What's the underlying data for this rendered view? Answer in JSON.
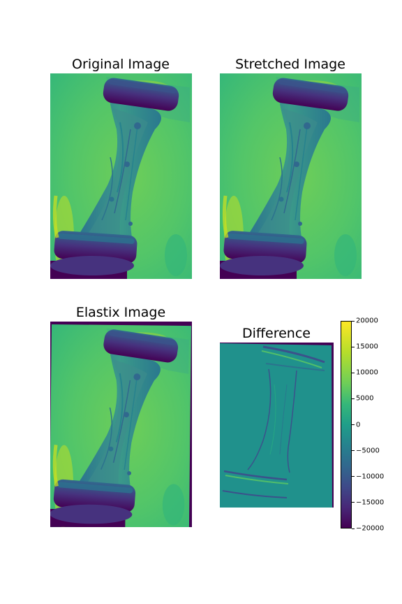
{
  "chart_data": [
    {
      "type": "heatmap",
      "title": "Original Image",
      "description_colormap": "viridis"
    },
    {
      "type": "heatmap",
      "title": "Stretched Image",
      "description_colormap": "viridis"
    },
    {
      "type": "heatmap",
      "title": "Elastix Image",
      "description_colormap": "viridis"
    },
    {
      "type": "heatmap",
      "title": "Difference",
      "description_colormap": "viridis",
      "colorbar": {
        "vmin": -20000,
        "vmax": 20000,
        "ticks": [
          "20000",
          "15000",
          "10000",
          "5000",
          "0",
          "−5000",
          "−10000",
          "−15000",
          "−20000"
        ]
      }
    }
  ]
}
